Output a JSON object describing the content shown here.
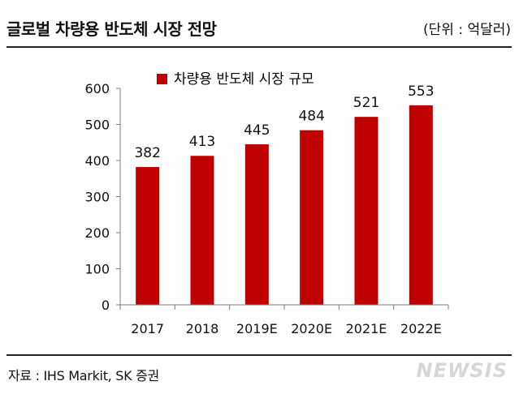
{
  "header": {
    "title": "글로벌 차량용 반도체 시장 전망",
    "unit": "(단위 :   억달러)"
  },
  "footer": {
    "source": "자료 : IHS Markit, SK 증권",
    "watermark": "NEWSIS"
  },
  "chart_data": {
    "type": "bar",
    "categories": [
      "2017",
      "2018",
      "2019E",
      "2020E",
      "2021E",
      "2022E"
    ],
    "series": [
      {
        "name": "차량용 반도체 시장 규모",
        "values": [
          382,
          413,
          445,
          484,
          521,
          553
        ]
      }
    ],
    "ylim": [
      0,
      600
    ],
    "yticks": [
      0,
      100,
      200,
      300,
      400,
      500,
      600
    ],
    "data_labels": [
      "382",
      "413",
      "445",
      "484",
      "521",
      "553"
    ],
    "legend_position": "top-center",
    "grid": false,
    "colors": {
      "bar": "#c00000",
      "axis": "#7f7f7f"
    }
  }
}
